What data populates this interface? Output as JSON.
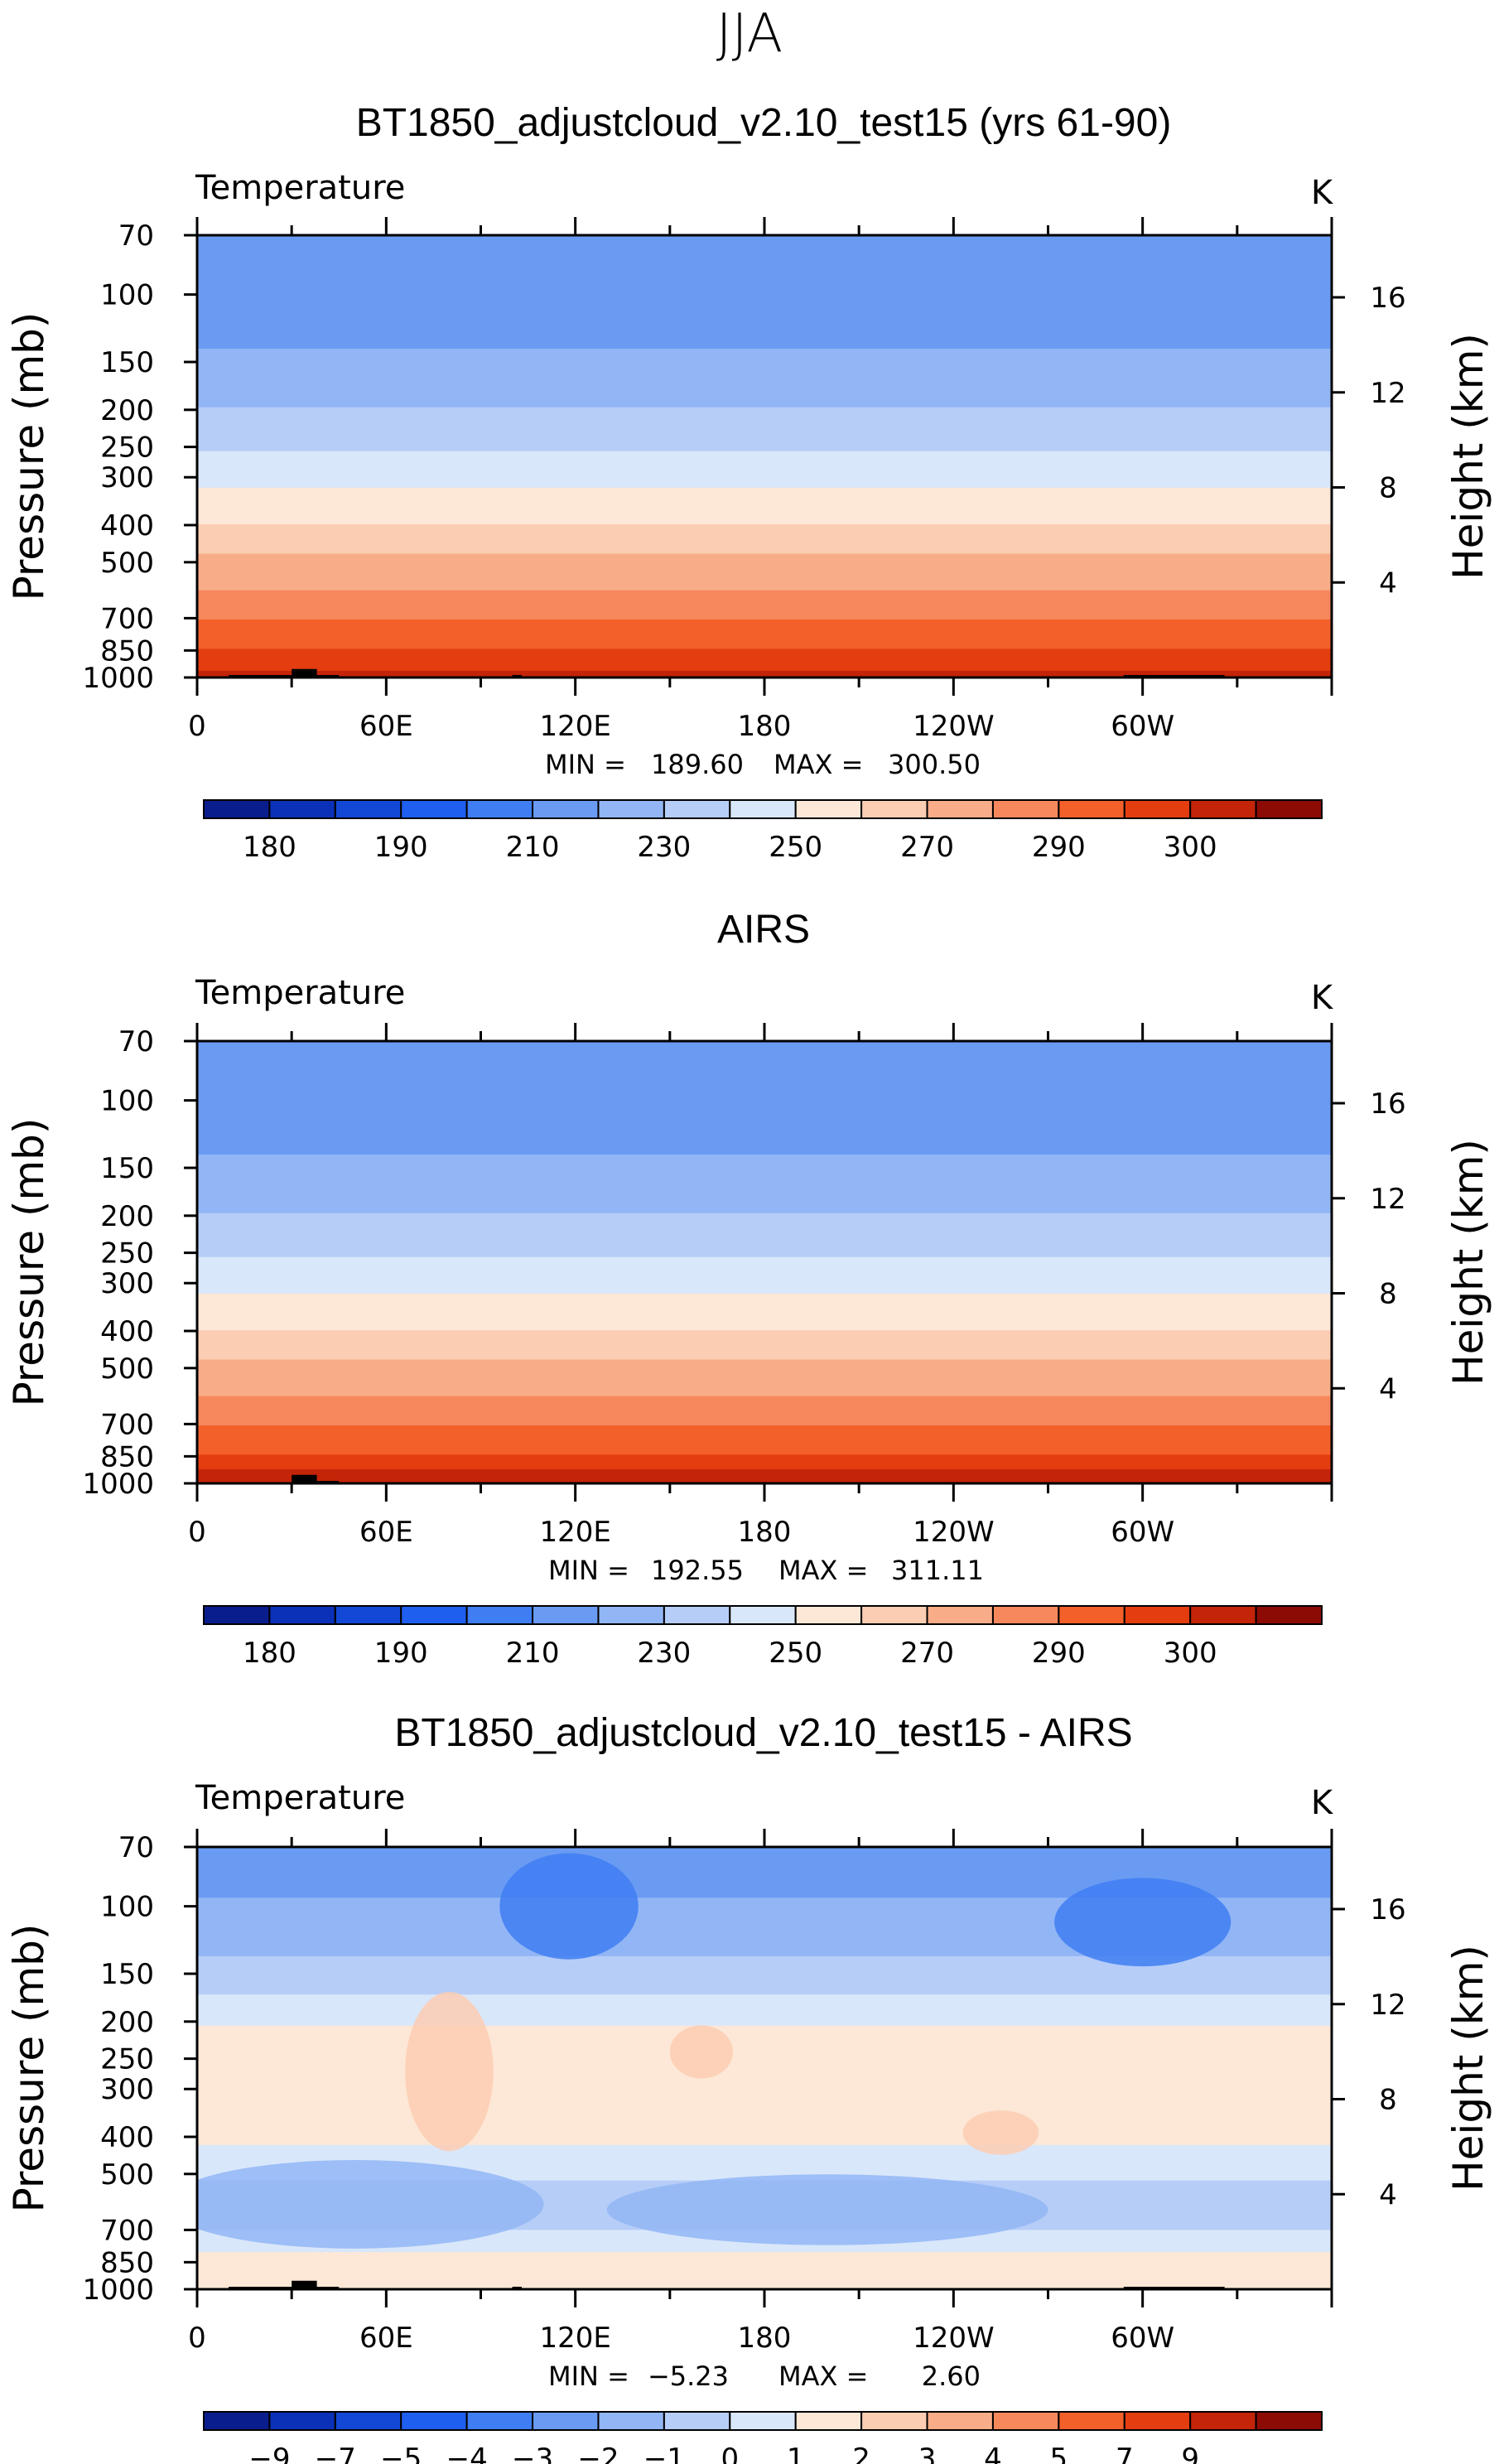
{
  "season": "JJA",
  "unit": "K",
  "variable": "Temperature",
  "colors": {
    "abs_bands": [
      "#0a1d8c",
      "#0b31b8",
      "#1348d6",
      "#1f5ff0",
      "#3f7ef2",
      "#6a9bf3",
      "#92b6f5",
      "#b6cdf8",
      "#d9e7fb",
      "#fde7d6",
      "#fbcdb3",
      "#f8ad88",
      "#f6885c",
      "#f3602a",
      "#e33d10",
      "#c42408",
      "#8c0c05"
    ],
    "diff_bands": [
      "#0a1d8c",
      "#0b31b8",
      "#1348d6",
      "#1f5ff0",
      "#3f7ef2",
      "#6a9bf3",
      "#92b6f5",
      "#b6cdf8",
      "#d9e7fb",
      "#fde7d6",
      "#fbcdb3",
      "#f8ad88",
      "#f6885c",
      "#f3602a",
      "#e33d10",
      "#c42408",
      "#8c0c05"
    ],
    "terrain": "#000000"
  },
  "chart_data": [
    {
      "type": "heatmap",
      "title": "BT1850_adjustcloud_v2.10_test15 (yrs 61-90)",
      "variable_label": "Temperature",
      "unit": "K",
      "xlabel": "",
      "ylabel": "Pressure (mb)",
      "y2label": "Height (km)",
      "x_ticks": [
        "0",
        "60E",
        "120E",
        "180",
        "120W",
        "60W"
      ],
      "y_ticks": [
        "70",
        "100",
        "150",
        "200",
        "250",
        "300",
        "400",
        "500",
        "700",
        "850",
        "1000"
      ],
      "y2_ticks": [
        "16",
        "12",
        "8",
        "4"
      ],
      "min_label": "MIN =",
      "min": "189.60",
      "max_label": "MAX =",
      "max": "300.50",
      "colorbar_labels": [
        "180",
        "190",
        "210",
        "230",
        "250",
        "270",
        "290",
        "300"
      ],
      "level_temps_K": {
        "70": 205,
        "100": 200,
        "150": 212,
        "200": 220,
        "250": 228,
        "300": 236,
        "400": 250,
        "500": 262,
        "700": 280,
        "850": 290,
        "1000": 297
      }
    },
    {
      "type": "heatmap",
      "title": "AIRS",
      "variable_label": "Temperature",
      "unit": "K",
      "xlabel": "",
      "ylabel": "Pressure (mb)",
      "y2label": "Height (km)",
      "x_ticks": [
        "0",
        "60E",
        "120E",
        "180",
        "120W",
        "60W"
      ],
      "y_ticks": [
        "70",
        "100",
        "150",
        "200",
        "250",
        "300",
        "400",
        "500",
        "700",
        "850",
        "1000"
      ],
      "y2_ticks": [
        "16",
        "12",
        "8",
        "4"
      ],
      "min_label": "MIN =",
      "min": "192.55",
      "max_label": "MAX =",
      "max": "311.11",
      "colorbar_labels": [
        "180",
        "190",
        "210",
        "230",
        "250",
        "270",
        "290",
        "300"
      ],
      "level_temps_K": {
        "70": 208,
        "100": 202,
        "150": 212,
        "200": 220,
        "250": 228,
        "300": 236,
        "400": 250,
        "500": 262,
        "700": 280,
        "850": 291,
        "1000": 299
      }
    },
    {
      "type": "heatmap",
      "title": "BT1850_adjustcloud_v2.10_test15 - AIRS",
      "variable_label": "Temperature",
      "unit": "K",
      "xlabel": "",
      "ylabel": "Pressure (mb)",
      "y2label": "Height (km)",
      "x_ticks": [
        "0",
        "60E",
        "120E",
        "180",
        "120W",
        "60W"
      ],
      "y_ticks": [
        "70",
        "100",
        "150",
        "200",
        "250",
        "300",
        "400",
        "500",
        "700",
        "850",
        "1000"
      ],
      "y2_ticks": [
        "16",
        "12",
        "8",
        "4"
      ],
      "min_label": "MIN =",
      "min": "−5.23",
      "max_label": "MAX =",
      "max": "2.60",
      "colorbar_labels": [
        "−9",
        "−7",
        "−5",
        "−4",
        "−3",
        "−2",
        "−1",
        "0",
        "1",
        "2",
        "3",
        "4",
        "5",
        "7",
        "9"
      ]
    }
  ]
}
